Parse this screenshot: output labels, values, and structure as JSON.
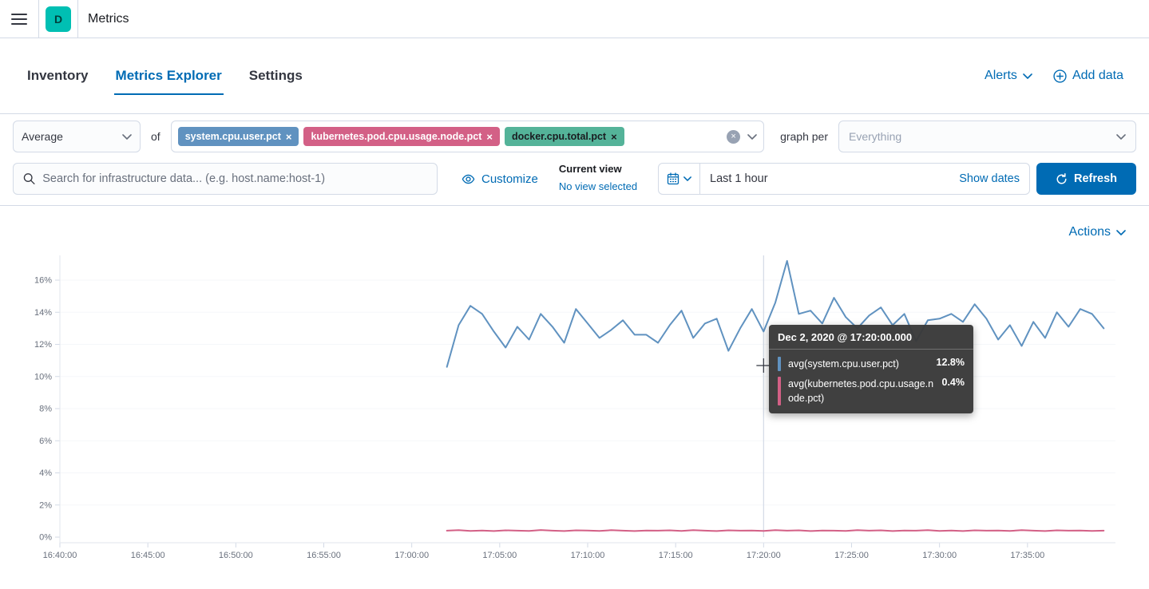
{
  "header": {
    "app_initial": "D",
    "title": "Metrics"
  },
  "tabs": [
    {
      "label": "Inventory",
      "active": false
    },
    {
      "label": "Metrics Explorer",
      "active": true
    },
    {
      "label": "Settings",
      "active": false
    }
  ],
  "header_actions": {
    "alerts": "Alerts",
    "add_data": "Add data"
  },
  "toolbar": {
    "aggregation": "Average",
    "of_label": "of",
    "metrics": [
      {
        "label": "system.cpu.user.pct",
        "color": "#6092C0",
        "text_color": "#ffffff"
      },
      {
        "label": "kubernetes.pod.cpu.usage.node.pct",
        "color": "#D36086",
        "text_color": "#ffffff"
      },
      {
        "label": "docker.cpu.total.pct",
        "color": "#54B399",
        "text_color": "#1a1c21"
      }
    ],
    "graph_per_label": "graph per",
    "graph_per_placeholder": "Everything"
  },
  "search": {
    "placeholder": "Search for infrastructure data... (e.g. host.name:host-1)"
  },
  "view_controls": {
    "customize": "Customize",
    "current_view_label": "Current view",
    "current_view_value": "No view selected"
  },
  "time_picker": {
    "range": "Last 1 hour",
    "show_dates": "Show dates",
    "refresh": "Refresh"
  },
  "actions_menu": {
    "label": "Actions"
  },
  "icons": {
    "close": "×"
  },
  "tooltip": {
    "title": "Dec 2, 2020 @ 17:20:00.000",
    "rows": [
      {
        "label": "avg(system.cpu.user.pct)",
        "value": "12.8%",
        "color": "#6092C0"
      },
      {
        "label": "avg(kubernetes.pod.cpu.usage.node.pct)",
        "value": "0.4%",
        "color": "#D36086"
      }
    ]
  },
  "chart_data": {
    "type": "line",
    "title": "",
    "xlabel": "",
    "ylabel": "",
    "ylim": [
      0,
      17.5
    ],
    "grid": true,
    "legend": "none",
    "y_ticks": [
      "0%",
      "2%",
      "4%",
      "6%",
      "8%",
      "10%",
      "12%",
      "14%",
      "16%"
    ],
    "x_ticks": [
      "16:40:00",
      "16:45:00",
      "16:50:00",
      "16:55:00",
      "17:00:00",
      "17:05:00",
      "17:10:00",
      "17:15:00",
      "17:20:00",
      "17:25:00",
      "17:30:00",
      "17:35:00"
    ],
    "x_domain_minutes": [
      0,
      60
    ],
    "crosshair": {
      "time_label": "Dec 2, 2020 @ 17:20:00.000",
      "offset_minutes": 40
    },
    "series": [
      {
        "name": "avg(system.cpu.user.pct)",
        "color": "#6092C0",
        "unit": "%",
        "start_offset_minutes": 22,
        "step_seconds": 40,
        "values": [
          10.6,
          13.2,
          14.4,
          13.9,
          12.8,
          11.8,
          13.1,
          12.3,
          13.9,
          13.1,
          12.1,
          14.2,
          13.3,
          12.4,
          12.9,
          13.5,
          12.6,
          12.6,
          12.1,
          13.2,
          14.1,
          12.4,
          13.3,
          13.6,
          11.6,
          13.0,
          14.2,
          12.8,
          14.6,
          17.2,
          13.9,
          14.1,
          13.3,
          14.9,
          13.7,
          13.0,
          13.8,
          14.3,
          13.2,
          13.9,
          12.2,
          13.5,
          13.6,
          13.9,
          13.4,
          14.5,
          13.6,
          12.3,
          13.2,
          11.9,
          13.4,
          12.4,
          14.0,
          13.1,
          14.2,
          13.9,
          13.0
        ]
      },
      {
        "name": "avg(kubernetes.pod.cpu.usage.node.pct)",
        "color": "#D36086",
        "unit": "%",
        "start_offset_minutes": 22,
        "step_seconds": 40,
        "values": [
          0.4,
          0.43,
          0.39,
          0.41,
          0.38,
          0.42,
          0.4,
          0.39,
          0.44,
          0.4,
          0.38,
          0.42,
          0.41,
          0.39,
          0.43,
          0.4,
          0.38,
          0.41,
          0.4,
          0.42,
          0.39,
          0.43,
          0.4,
          0.38,
          0.42,
          0.4,
          0.41,
          0.39,
          0.43,
          0.4,
          0.42,
          0.38,
          0.41,
          0.4,
          0.39,
          0.43,
          0.4,
          0.42,
          0.38,
          0.41,
          0.4,
          0.43,
          0.39,
          0.41,
          0.38,
          0.42,
          0.4,
          0.41,
          0.39,
          0.43,
          0.4,
          0.38,
          0.42,
          0.4,
          0.41,
          0.39,
          0.4
        ]
      }
    ]
  }
}
